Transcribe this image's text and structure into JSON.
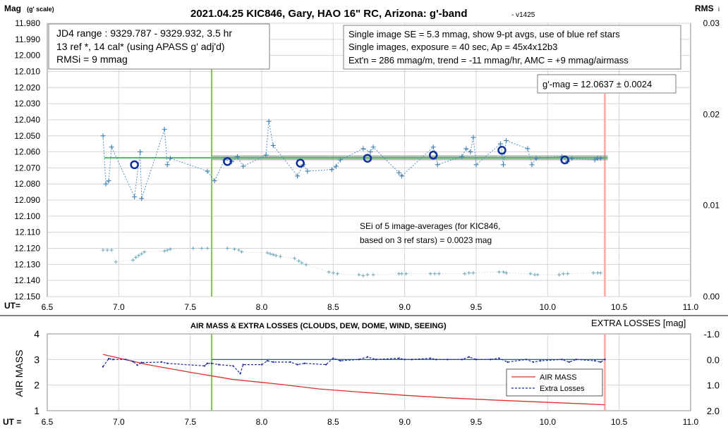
{
  "colors": {
    "model_line": "#4fbf6a",
    "model_shadow": "#8a8a8a",
    "data_plus": "#3e7fb0",
    "data_dash": "#4a86b8",
    "avg_circle": "#0f2f9a",
    "rms_plus": "#6aa7b8",
    "green_marker": "#86c440",
    "pink_marker": "#f4b4b4",
    "airmass_line": "#e0302a",
    "losses_line": "#1f2a9a"
  },
  "top_chart": {
    "title": "2021.04.25 KIC846, Gary, HAO 16\" RC, Arizona: g'-band",
    "version": "- v1425",
    "ylabel_left": "Mag",
    "ylabel_left_sub": "(g' scale)",
    "ylabel_right": "RMS",
    "ylabel_right_sub": "i",
    "xlabel": "UT=",
    "info_left": [
      "JD4 range : 9329.787 - 9329.932,  3.5  hr",
      "13 ref *, 14 cal* (using APASS g' adj'd)",
      "RMSi = 9 mmag"
    ],
    "info_right": [
      "Single image SE = 5.3 mmag, show  9-pt avgs, use of blue ref stars",
      "Single images, exposure = 40 sec, Ap = 45x4x12b3",
      "Ext'n = 286 mmag/m, trend =  -11 mmag/hr, AMC = +9 mmag/airmass"
    ],
    "gmag_label": "g'-mag = 12.0637 ± 0.0024",
    "sei_label": [
      "SEi of 5 image-averages (for KIC846,",
      "based on 3 ref stars) = 0.0023 mag"
    ],
    "y_ticks": [
      "11.980",
      "11.990",
      "12.000",
      "12.010",
      "12.020",
      "12.030",
      "12.040",
      "12.050",
      "12.060",
      "12.070",
      "12.080",
      "12.090",
      "12.100",
      "12.110",
      "12.120",
      "12.130",
      "12.140",
      "12.150"
    ],
    "y_right_ticks": [
      "0.03",
      "0.02",
      "0.01",
      "0.00"
    ],
    "x_ticks": [
      "6.5",
      "7.0",
      "7.5",
      "8.0",
      "8.5",
      "9.0",
      "9.5",
      "10.0",
      "10.5",
      "11.0"
    ]
  },
  "bottom_chart": {
    "title": "AIR MASS & EXTRA LOSSES (CLOUDS, DEW, DOME, WIND, SEEING)",
    "ylabel_left": "AIR MASS",
    "ylabel_right": "EXTRA LOSSES [mag]",
    "xlabel": "UT =",
    "y_ticks": [
      "4",
      "3",
      "2",
      "1"
    ],
    "y_right_ticks": [
      "-1.0",
      "0.0",
      "1.0",
      "2.0"
    ],
    "x_ticks": [
      "6.5",
      "7.0",
      "7.5",
      "8.0",
      "8.5",
      "9.0",
      "9.5",
      "10.0",
      "10.5",
      "11.0"
    ],
    "legend": [
      "AIR MASS",
      "Extra Losses"
    ]
  },
  "chart_data": [
    {
      "type": "scatter",
      "x_range": [
        6.5,
        11.0
      ],
      "y_range_mag": [
        12.15,
        11.98
      ],
      "y_range_rms": [
        0.0,
        0.03
      ],
      "model_mag": 12.0637,
      "model_ut_range": [
        6.9,
        10.42
      ],
      "vertical_markers_ut": [
        7.65,
        10.4
      ],
      "series": [
        {
          "name": "",
          "role": "single_images",
          "x": [
            6.89,
            6.91,
            6.93,
            6.95,
            7.11,
            7.15,
            7.16,
            7.32,
            7.34,
            7.36,
            7.62,
            7.67,
            7.74,
            7.79,
            7.83,
            7.87,
            8.03,
            8.05,
            8.08,
            8.25,
            8.29,
            8.32,
            8.49,
            8.52,
            8.55,
            8.71,
            8.76,
            8.78,
            8.96,
            8.98,
            9.2,
            9.23,
            9.4,
            9.43,
            9.46,
            9.48,
            9.5,
            9.67,
            9.69,
            9.71,
            9.86,
            9.89,
            9.92,
            10.1,
            10.14,
            10.17,
            10.33,
            10.35,
            10.37
          ],
          "y": [
            12.05,
            12.08,
            12.078,
            12.057,
            12.088,
            12.06,
            12.089,
            12.046,
            12.068,
            12.064,
            12.072,
            12.078,
            12.065,
            12.066,
            12.063,
            12.069,
            12.062,
            12.041,
            12.056,
            12.075,
            12.068,
            12.072,
            12.071,
            12.069,
            12.065,
            12.058,
            12.06,
            12.057,
            12.073,
            12.075,
            12.057,
            12.068,
            12.063,
            12.058,
            12.06,
            12.051,
            12.068,
            12.055,
            12.068,
            12.053,
            12.058,
            12.068,
            12.064,
            12.063,
            12.066,
            12.064,
            12.065,
            12.064,
            12.064
          ]
        },
        {
          "name": "",
          "role": "nine_point_averages",
          "x": [
            7.11,
            7.76,
            8.27,
            8.74,
            9.2,
            9.68,
            10.12
          ],
          "y": [
            12.068,
            12.066,
            12.067,
            12.064,
            12.062,
            12.059,
            12.065
          ]
        },
        {
          "name": "",
          "role": "rms_i",
          "x": [
            6.89,
            6.92,
            6.95,
            6.98,
            7.1,
            7.12,
            7.14,
            7.16,
            7.18,
            7.32,
            7.34,
            7.36,
            7.52,
            7.58,
            7.62,
            7.76,
            7.81,
            7.84,
            7.86,
            8.04,
            8.06,
            8.08,
            8.1,
            8.13,
            8.23,
            8.26,
            8.28,
            8.31,
            8.47,
            8.5,
            8.53,
            8.68,
            8.71,
            8.74,
            8.78,
            8.96,
            8.98,
            9.01,
            9.18,
            9.21,
            9.24,
            9.42,
            9.45,
            9.48,
            9.66,
            9.69,
            9.71,
            9.88,
            9.91,
            9.93,
            10.08,
            10.11,
            10.14,
            10.32,
            10.35,
            10.37
          ],
          "y": [
            0.0051,
            0.0051,
            0.0051,
            0.0038,
            0.004,
            0.0043,
            0.0045,
            0.0047,
            0.0049,
            0.005,
            0.0051,
            0.0052,
            0.0053,
            0.0053,
            0.0053,
            0.0053,
            0.0052,
            0.0051,
            0.0049,
            0.0048,
            0.0047,
            0.0046,
            0.0045,
            0.0044,
            0.0042,
            0.0039,
            0.0037,
            0.0035,
            0.0027,
            0.0026,
            0.0025,
            0.0024,
            0.0023,
            0.0024,
            0.0024,
            0.0025,
            0.0025,
            0.0025,
            0.0025,
            0.0025,
            0.0025,
            0.0025,
            0.0026,
            0.0026,
            0.0027,
            0.0027,
            0.0026,
            0.0025,
            0.0024,
            0.0024,
            0.0024,
            0.0025,
            0.0025,
            0.0026,
            0.0026,
            0.0026
          ]
        }
      ]
    },
    {
      "type": "line",
      "x_range": [
        6.5,
        11.0
      ],
      "y_range_airmass": [
        1,
        4
      ],
      "y_range_losses": [
        2.0,
        -1.0
      ],
      "vertical_markers_ut": [
        7.65,
        10.4
      ],
      "series": [
        {
          "name": "AIR MASS",
          "x": [
            6.89,
            7.2,
            7.5,
            7.8,
            8.1,
            8.4,
            8.7,
            9.0,
            9.3,
            9.6,
            9.9,
            10.2,
            10.4
          ],
          "y": [
            3.2,
            2.8,
            2.5,
            2.22,
            2.05,
            1.85,
            1.72,
            1.6,
            1.5,
            1.42,
            1.35,
            1.28,
            1.23
          ]
        },
        {
          "name": "Extra Losses",
          "x": [
            6.89,
            6.93,
            6.96,
            7.05,
            7.1,
            7.13,
            7.16,
            7.3,
            7.34,
            7.6,
            7.62,
            7.65,
            7.7,
            7.8,
            7.85,
            7.87,
            8.0,
            8.04,
            8.08,
            8.2,
            8.25,
            8.3,
            8.45,
            8.5,
            8.55,
            8.68,
            8.74,
            8.8,
            8.96,
            9.0,
            9.05,
            9.18,
            9.22,
            9.3,
            9.4,
            9.45,
            9.5,
            9.6,
            9.66,
            9.72,
            9.85,
            9.9,
            9.95,
            10.1,
            10.15,
            10.2,
            10.33,
            10.37,
            10.4
          ],
          "y": [
            0.28,
            -0.03,
            0.0,
            0.0,
            0.08,
            0.22,
            0.12,
            0.1,
            0.15,
            0.25,
            0.15,
            0.15,
            0.2,
            0.25,
            0.55,
            0.2,
            0.2,
            0.05,
            0.1,
            0.1,
            0.2,
            0.15,
            0.2,
            -0.05,
            0.05,
            0.0,
            -0.1,
            0.0,
            -0.05,
            0.0,
            0.0,
            -0.05,
            0.0,
            0.0,
            0.0,
            -0.1,
            0.0,
            0.0,
            -0.05,
            0.1,
            0.0,
            0.1,
            0.05,
            0.0,
            0.1,
            0.0,
            0.05,
            0.1,
            0.0
          ]
        },
        {
          "name": "",
          "role": "losses_reference_level",
          "x": [
            7.65,
            10.4
          ],
          "y": [
            0.0,
            0.0
          ]
        }
      ]
    }
  ]
}
